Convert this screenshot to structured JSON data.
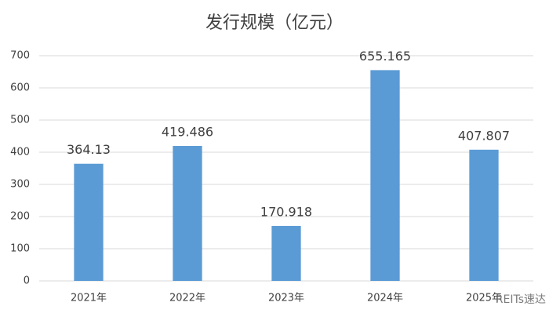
{
  "chart_data": {
    "type": "bar",
    "title": "发行规模（亿元）",
    "categories": [
      "2021年",
      "2022年",
      "2023年",
      "2024年",
      "2025年"
    ],
    "values": [
      364.13,
      419.486,
      170.918,
      655.165,
      407.807
    ],
    "color": "#5b9bd5",
    "ylim": [
      0,
      700
    ],
    "yticks": [
      0,
      100,
      200,
      300,
      400,
      500,
      600,
      700
    ],
    "grid": true,
    "watermark": "REITs速达"
  }
}
